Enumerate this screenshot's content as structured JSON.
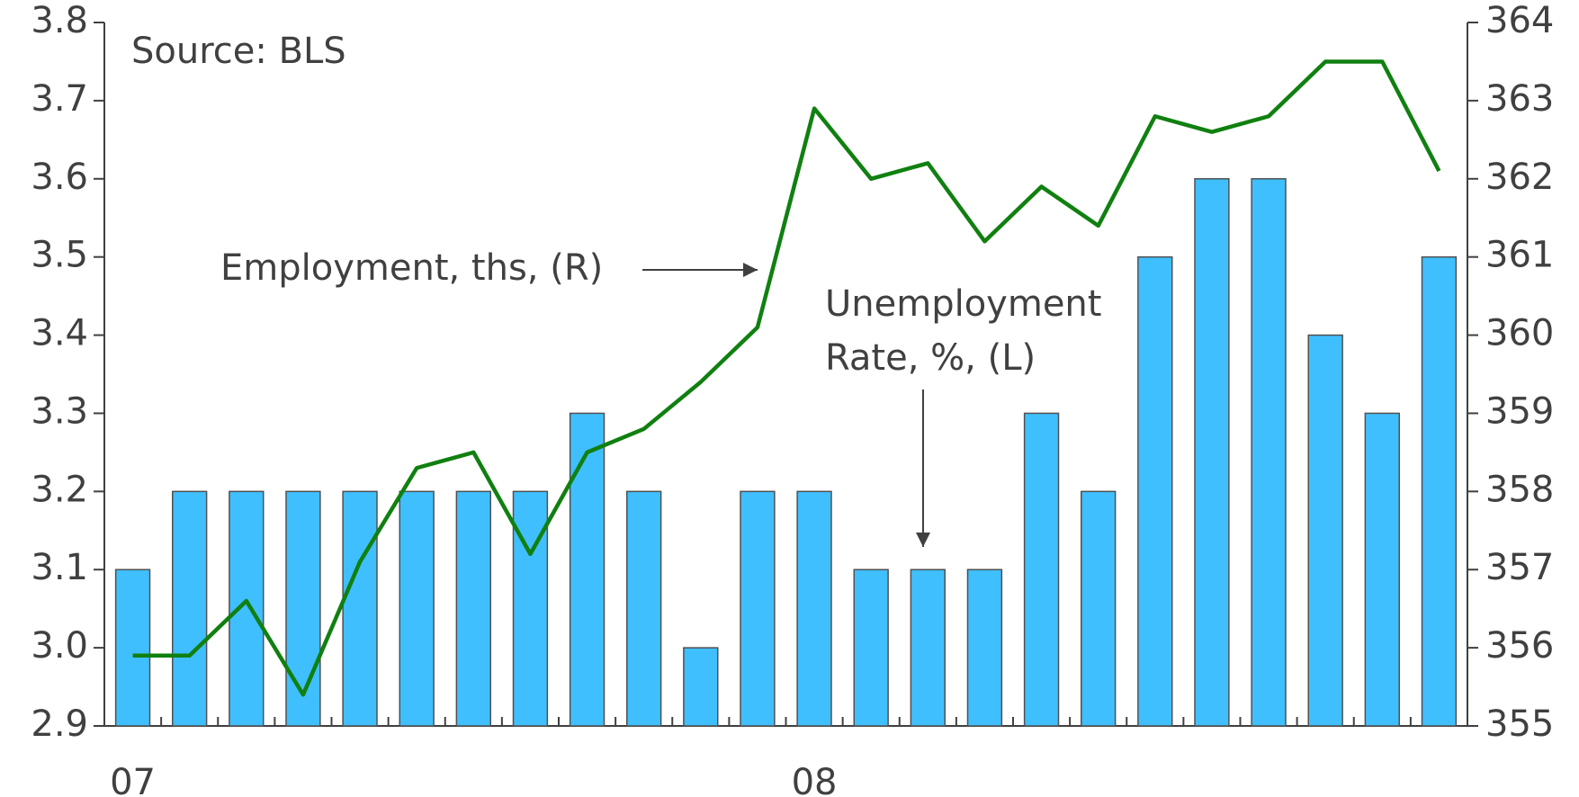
{
  "chart_data": {
    "type": "bar",
    "annotations": [
      "Source:  BLS",
      "Employment, ths, (R)",
      "Unemployment",
      "Rate, %, (L)"
    ],
    "categories": [
      "07",
      null,
      null,
      null,
      null,
      null,
      null,
      null,
      null,
      null,
      null,
      null,
      "08",
      null,
      null,
      null,
      null,
      null,
      null,
      null,
      null,
      null,
      null,
      null
    ],
    "series": [
      {
        "name": "Unemployment Rate, %, (L)",
        "type": "bar",
        "color": "#40bfff",
        "axis": "y",
        "values": [
          3.1,
          3.2,
          3.2,
          3.2,
          3.2,
          3.2,
          3.2,
          3.2,
          3.3,
          3.2,
          3.0,
          3.2,
          3.2,
          3.1,
          3.1,
          3.1,
          3.3,
          3.2,
          3.5,
          3.6,
          3.6,
          3.4,
          3.3,
          3.5
        ]
      },
      {
        "name": "Employment, ths, (R)",
        "type": "line",
        "color": "#108010",
        "axis": "y2",
        "values": [
          355.9,
          355.9,
          356.6,
          355.4,
          357.1,
          358.3,
          358.5,
          357.2,
          358.5,
          358.8,
          359.4,
          360.1,
          362.9,
          362.0,
          362.2,
          361.2,
          361.9,
          361.4,
          362.8,
          362.6,
          362.8,
          363.5,
          363.5,
          362.1
        ]
      }
    ],
    "ylim": [
      2.9,
      3.8
    ],
    "yticks": [
      2.9,
      {
        "value": 3,
        "label": "3.0"
      },
      3.1,
      3.2,
      3.3,
      3.4,
      3.5,
      3.6,
      3.7,
      3.8
    ],
    "y2lim": [
      355,
      364
    ],
    "y2ticks": [
      355,
      356,
      357,
      358,
      359,
      360,
      361,
      362,
      363,
      364
    ]
  }
}
